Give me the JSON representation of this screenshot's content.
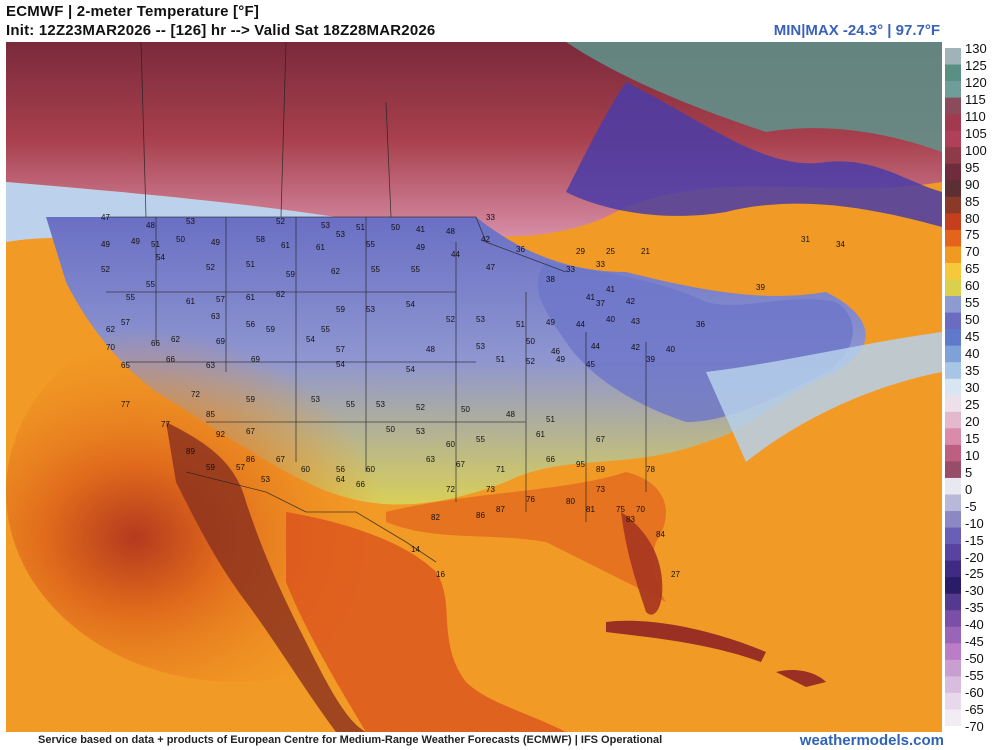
{
  "header": {
    "title": "ECMWF | 2-meter Temperature [°F]",
    "subtitle": "Init: 12Z23MAR2026 -- [126] hr --> Valid Sat 18Z28MAR2026",
    "minmax": "MIN|MAX -24.3° | 97.7°F"
  },
  "legend": {
    "ticks": [
      "130",
      "125",
      "120",
      "115",
      "110",
      "105",
      "100",
      "95",
      "90",
      "85",
      "80",
      "75",
      "70",
      "65",
      "60",
      "55",
      "50",
      "45",
      "40",
      "35",
      "30",
      "25",
      "20",
      "15",
      "10",
      "5",
      "0",
      "-5",
      "-10",
      "-15",
      "-20",
      "-25",
      "-30",
      "-35",
      "-40",
      "-45",
      "-50",
      "-55",
      "-60",
      "-65",
      "-70"
    ],
    "colors": [
      "#9fb3b8",
      "#5a8f84",
      "#6f9d99",
      "#8c4b5a",
      "#a23a4f",
      "#b0405a",
      "#8f3a49",
      "#6e2c3c",
      "#5c2f35",
      "#8b3a2a",
      "#c53f1e",
      "#e4641c",
      "#f09a22",
      "#f6c93a",
      "#d9d14d",
      "#8e9bd0",
      "#6a6cc1",
      "#5f7acb",
      "#7ea2d8",
      "#a7c6e6",
      "#d7e6f2",
      "#ede0ea",
      "#e5b9cd",
      "#d98ba9",
      "#bd5f80",
      "#974d6a",
      "#e8e8f0",
      "#b8b8d8",
      "#8c88c4",
      "#6a5fb6",
      "#5843a0",
      "#3f2a84",
      "#2a1c66",
      "#543a8f",
      "#7a4fa8",
      "#9a64b7",
      "#bb7dc6",
      "#c89fd0",
      "#d9bddf",
      "#e8d8ec",
      "#f2ecf4"
    ]
  },
  "stations": [
    {
      "t": "47"
    },
    {
      "t": "48"
    },
    {
      "t": "53"
    },
    {
      "t": "52"
    },
    {
      "t": "53"
    },
    {
      "t": "51"
    },
    {
      "t": "50"
    },
    {
      "t": "41"
    },
    {
      "t": "48"
    },
    {
      "t": "42"
    },
    {
      "t": "33"
    },
    {
      "t": "49"
    },
    {
      "t": "49"
    },
    {
      "t": "51"
    },
    {
      "t": "50"
    },
    {
      "t": "49"
    },
    {
      "t": "58"
    },
    {
      "t": "61"
    },
    {
      "t": "61"
    },
    {
      "t": "53"
    },
    {
      "t": "55"
    },
    {
      "t": "49"
    },
    {
      "t": "44"
    },
    {
      "t": "36"
    },
    {
      "t": "29"
    },
    {
      "t": "25"
    },
    {
      "t": "21"
    },
    {
      "t": "52"
    },
    {
      "t": "54"
    },
    {
      "t": "52"
    },
    {
      "t": "51"
    },
    {
      "t": "59"
    },
    {
      "t": "62"
    },
    {
      "t": "55"
    },
    {
      "t": "55"
    },
    {
      "t": "47"
    },
    {
      "t": "38"
    },
    {
      "t": "33"
    },
    {
      "t": "33"
    },
    {
      "t": "55"
    },
    {
      "t": "55"
    },
    {
      "t": "61"
    },
    {
      "t": "57"
    },
    {
      "t": "61"
    },
    {
      "t": "62"
    },
    {
      "t": "59"
    },
    {
      "t": "53"
    },
    {
      "t": "54"
    },
    {
      "t": "53"
    },
    {
      "t": "41"
    },
    {
      "t": "42"
    },
    {
      "t": "37"
    },
    {
      "t": "41"
    },
    {
      "t": "62"
    },
    {
      "t": "57"
    },
    {
      "t": "63"
    },
    {
      "t": "56"
    },
    {
      "t": "59"
    },
    {
      "t": "55"
    },
    {
      "t": "52"
    },
    {
      "t": "51"
    },
    {
      "t": "49"
    },
    {
      "t": "44"
    },
    {
      "t": "40"
    },
    {
      "t": "43"
    },
    {
      "t": "36"
    },
    {
      "t": "70"
    },
    {
      "t": "66"
    },
    {
      "t": "62"
    },
    {
      "t": "69"
    },
    {
      "t": "54"
    },
    {
      "t": "57"
    },
    {
      "t": "48"
    },
    {
      "t": "53"
    },
    {
      "t": "50"
    },
    {
      "t": "46"
    },
    {
      "t": "44"
    },
    {
      "t": "42"
    },
    {
      "t": "40"
    },
    {
      "t": "65"
    },
    {
      "t": "66"
    },
    {
      "t": "63"
    },
    {
      "t": "69"
    },
    {
      "t": "54"
    },
    {
      "t": "54"
    },
    {
      "t": "51"
    },
    {
      "t": "52"
    },
    {
      "t": "49"
    },
    {
      "t": "45"
    },
    {
      "t": "39"
    },
    {
      "t": "77"
    },
    {
      "t": "72"
    },
    {
      "t": "59"
    },
    {
      "t": "53"
    },
    {
      "t": "55"
    },
    {
      "t": "53"
    },
    {
      "t": "52"
    },
    {
      "t": "50"
    },
    {
      "t": "48"
    },
    {
      "t": "51"
    },
    {
      "t": "77"
    },
    {
      "t": "85"
    },
    {
      "t": "67"
    },
    {
      "t": "50"
    },
    {
      "t": "53"
    },
    {
      "t": "60"
    },
    {
      "t": "55"
    },
    {
      "t": "61"
    },
    {
      "t": "67"
    },
    {
      "t": "89"
    },
    {
      "t": "92"
    },
    {
      "t": "86"
    },
    {
      "t": "67"
    },
    {
      "t": "56"
    },
    {
      "t": "60"
    },
    {
      "t": "63"
    },
    {
      "t": "67"
    },
    {
      "t": "71"
    },
    {
      "t": "66"
    },
    {
      "t": "95"
    },
    {
      "t": "89"
    },
    {
      "t": "78"
    },
    {
      "t": "59"
    },
    {
      "t": "57"
    },
    {
      "t": "53"
    },
    {
      "t": "60"
    },
    {
      "t": "64"
    },
    {
      "t": "66"
    },
    {
      "t": "72"
    },
    {
      "t": "73"
    },
    {
      "t": "76"
    },
    {
      "t": "80"
    },
    {
      "t": "73"
    },
    {
      "t": "75"
    },
    {
      "t": "70"
    },
    {
      "t": "82"
    },
    {
      "t": "86"
    },
    {
      "t": "87"
    },
    {
      "t": "81"
    },
    {
      "t": "83"
    },
    {
      "t": "84"
    },
    {
      "t": "14"
    },
    {
      "t": "16"
    },
    {
      "t": "27"
    },
    {
      "t": "31"
    },
    {
      "t": "34"
    },
    {
      "t": "39"
    }
  ]
}
